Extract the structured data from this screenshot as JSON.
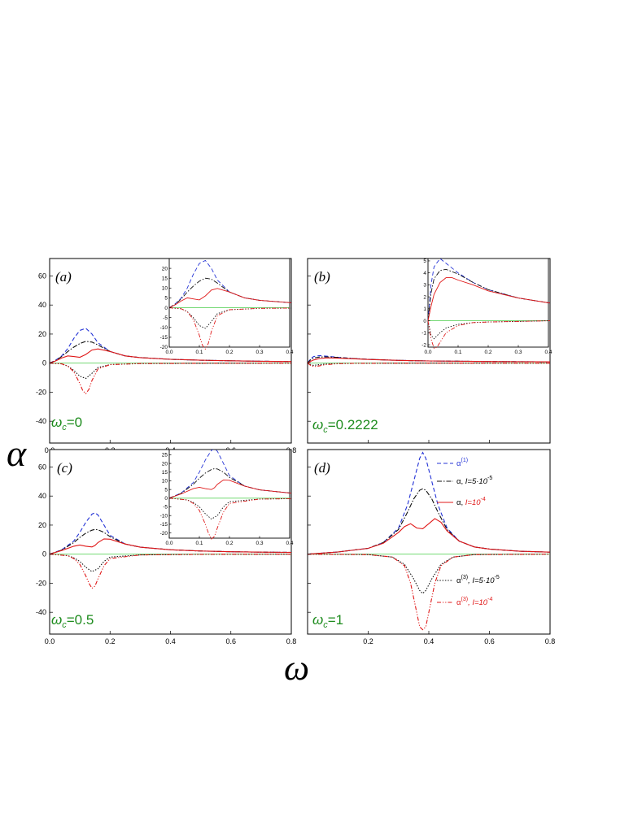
{
  "figure": {
    "y_axis_label": "α",
    "x_axis_label": "ω"
  },
  "legend": [
    {
      "id": "a1",
      "label": "α",
      "sup": "(1)",
      "tail": "",
      "color": "#2433d6",
      "style": "dash"
    },
    {
      "id": "a_low",
      "label": "α, ",
      "sup": "",
      "tail": "I=5·10",
      "tail_sup": "-5",
      "color": "#111111",
      "style": "dashdot"
    },
    {
      "id": "a_high",
      "label": "α, ",
      "sup": "",
      "tail": "I=10",
      "tail_sup": "-4",
      "color": "#e01818",
      "style": "solid"
    },
    {
      "id": "a3_low",
      "label": "α",
      "sup": "(3)",
      "tail": ", I=5·10",
      "tail_sup": "-5",
      "color": "#111111",
      "style": "dot"
    },
    {
      "id": "a3_high",
      "label": "α",
      "sup": "(3)",
      "tail": ", I=10",
      "tail_sup": "-4",
      "color": "#e01818",
      "style": "dashdotdot"
    }
  ],
  "chart_data": [
    {
      "panel": "(a)",
      "type": "line",
      "omega_c_label": "=0",
      "xlim": [
        0,
        0.8
      ],
      "ylim": [
        -55,
        72
      ],
      "xticks": [
        "0.0",
        "0.2",
        "0.4",
        "0.6",
        "0.8"
      ],
      "yticks": [
        "60",
        "40",
        "20",
        "0",
        "-20",
        "-40"
      ],
      "series": [
        {
          "name": "α(1)",
          "x": [
            0.0,
            0.02,
            0.04,
            0.06,
            0.08,
            0.1,
            0.12,
            0.14,
            0.16,
            0.2,
            0.25,
            0.3,
            0.4,
            0.5,
            0.6,
            0.7,
            0.8
          ],
          "y": [
            0,
            2,
            5,
            10,
            17,
            22.5,
            24,
            20,
            14,
            8,
            5,
            3.8,
            2.6,
            2.0,
            1.6,
            1.3,
            1.1
          ]
        },
        {
          "name": "α, I=5·10^-5",
          "x": [
            0.0,
            0.02,
            0.04,
            0.06,
            0.08,
            0.1,
            0.12,
            0.14,
            0.16,
            0.2,
            0.25,
            0.3,
            0.4,
            0.5,
            0.6,
            0.7,
            0.8
          ],
          "y": [
            0,
            1.8,
            4.5,
            8,
            11,
            13.5,
            15,
            14.5,
            12.5,
            8,
            5,
            3.8,
            2.6,
            2.0,
            1.6,
            1.3,
            1.1
          ]
        },
        {
          "name": "α, I=10^-4",
          "x": [
            0.0,
            0.02,
            0.04,
            0.06,
            0.08,
            0.1,
            0.12,
            0.14,
            0.16,
            0.2,
            0.25,
            0.3,
            0.4,
            0.5,
            0.6,
            0.7,
            0.8
          ],
          "y": [
            0,
            1.5,
            3.5,
            5,
            4.5,
            4,
            6,
            9,
            9.8,
            8,
            5,
            3.8,
            2.6,
            2.0,
            1.6,
            1.3,
            1.1
          ]
        },
        {
          "name": "α(3), I=5·10^-5",
          "x": [
            0.0,
            0.04,
            0.06,
            0.08,
            0.1,
            0.12,
            0.14,
            0.16,
            0.2,
            0.3,
            0.5,
            0.8
          ],
          "y": [
            0,
            -0.5,
            -2,
            -5,
            -9,
            -10.5,
            -7,
            -3,
            -1,
            -0.3,
            -0.1,
            0
          ]
        },
        {
          "name": "α(3), I=10^-4",
          "x": [
            0.0,
            0.04,
            0.06,
            0.08,
            0.1,
            0.11,
            0.12,
            0.13,
            0.14,
            0.16,
            0.2,
            0.3,
            0.5,
            0.8
          ],
          "y": [
            0,
            -0.5,
            -2,
            -6,
            -14,
            -19,
            -21,
            -18,
            -12,
            -4,
            -1,
            -0.3,
            -0.1,
            0
          ]
        }
      ],
      "inset": {
        "xlim": [
          0,
          0.4
        ],
        "ylim": [
          -20,
          25
        ],
        "xticks": [
          "0.0",
          "0.1",
          "0.2",
          "0.3",
          "0.4"
        ],
        "yticks": [
          "20",
          "15",
          "10",
          "5",
          "0",
          "-5",
          "-10",
          "-15",
          "-20"
        ]
      }
    },
    {
      "panel": "(b)",
      "type": "line",
      "omega_c_label": "=0.2222",
      "xlim": [
        0,
        0.8
      ],
      "ylim": [
        -55,
        72
      ],
      "xticks": [],
      "yticks": [],
      "series": [
        {
          "name": "α(1)",
          "x": [
            0.0,
            0.01,
            0.02,
            0.04,
            0.06,
            0.1,
            0.15,
            0.2,
            0.3,
            0.4,
            0.6,
            0.8
          ],
          "y": [
            0,
            3,
            4.5,
            5.2,
            4.8,
            4.0,
            3.2,
            2.6,
            1.9,
            1.5,
            1.1,
            0.9
          ]
        },
        {
          "name": "α, I=5·10^-5",
          "x": [
            0.0,
            0.01,
            0.02,
            0.04,
            0.06,
            0.1,
            0.15,
            0.2,
            0.3,
            0.4,
            0.6,
            0.8
          ],
          "y": [
            0,
            2.3,
            3.5,
            4.2,
            4.3,
            3.9,
            3.2,
            2.6,
            1.9,
            1.5,
            1.1,
            0.9
          ]
        },
        {
          "name": "α, I=10^-4",
          "x": [
            0.0,
            0.01,
            0.02,
            0.04,
            0.06,
            0.08,
            0.1,
            0.15,
            0.2,
            0.3,
            0.4,
            0.6,
            0.8
          ],
          "y": [
            0,
            1.2,
            2.2,
            3.2,
            3.6,
            3.6,
            3.4,
            3.0,
            2.5,
            1.9,
            1.5,
            1.1,
            0.9
          ]
        },
        {
          "name": "α(3), I=5·10^-5",
          "x": [
            0.0,
            0.01,
            0.02,
            0.04,
            0.06,
            0.1,
            0.15,
            0.2,
            0.4,
            0.8
          ],
          "y": [
            0,
            -1.2,
            -1.5,
            -1.0,
            -0.6,
            -0.3,
            -0.15,
            -0.1,
            0,
            0
          ]
        },
        {
          "name": "α(3), I=10^-4",
          "x": [
            0.0,
            0.01,
            0.02,
            0.03,
            0.04,
            0.06,
            0.1,
            0.15,
            0.2,
            0.4,
            0.8
          ],
          "y": [
            0,
            -1.5,
            -2.3,
            -2.2,
            -1.8,
            -1.0,
            -0.4,
            -0.15,
            -0.1,
            0,
            0
          ]
        }
      ],
      "inset": {
        "xlim": [
          0,
          0.4
        ],
        "ylim": [
          -2.2,
          5.2
        ],
        "xticks": [
          "0.0",
          "0.1",
          "0.2",
          "0.3",
          "0.4"
        ],
        "yticks": [
          "5",
          "4",
          "3",
          "2",
          "1",
          "0",
          "-1",
          "-2"
        ]
      }
    },
    {
      "panel": "(c)",
      "type": "line",
      "omega_c_label": "=0.5",
      "xlim": [
        0,
        0.8
      ],
      "ylim": [
        -55,
        72
      ],
      "xticks": [
        "0.0",
        "0.2",
        "0.4",
        "0.6",
        "0.8"
      ],
      "yticks": [
        "60",
        "40",
        "20",
        "0",
        "-20",
        "-40"
      ],
      "series": [
        {
          "name": "α(1)",
          "x": [
            0.0,
            0.04,
            0.08,
            0.1,
            0.12,
            0.14,
            0.15,
            0.16,
            0.18,
            0.2,
            0.25,
            0.3,
            0.4,
            0.5,
            0.6,
            0.7,
            0.8
          ],
          "y": [
            0,
            3,
            9,
            15,
            22,
            27.5,
            28.5,
            27,
            20,
            13,
            7,
            4.8,
            3.0,
            2.2,
            1.7,
            1.4,
            1.2
          ]
        },
        {
          "name": "α, I=5·10^-5",
          "x": [
            0.0,
            0.04,
            0.08,
            0.1,
            0.12,
            0.14,
            0.15,
            0.16,
            0.18,
            0.2,
            0.25,
            0.3,
            0.4,
            0.5,
            0.6,
            0.7,
            0.8
          ],
          "y": [
            0,
            2.8,
            8,
            11.5,
            14.5,
            16.5,
            17,
            16.8,
            15,
            12,
            7,
            4.8,
            3.0,
            2.2,
            1.7,
            1.4,
            1.2
          ]
        },
        {
          "name": "α, I=10^-4",
          "x": [
            0.0,
            0.04,
            0.08,
            0.1,
            0.12,
            0.14,
            0.15,
            0.16,
            0.18,
            0.2,
            0.25,
            0.3,
            0.4,
            0.5,
            0.6,
            0.7,
            0.8
          ],
          "y": [
            0,
            2.5,
            5.5,
            6.3,
            5.5,
            5,
            6,
            8,
            10.5,
            10.3,
            7,
            4.8,
            3.0,
            2.2,
            1.7,
            1.4,
            1.2
          ]
        },
        {
          "name": "α(3), I=5·10^-5",
          "x": [
            0.0,
            0.06,
            0.08,
            0.1,
            0.12,
            0.14,
            0.16,
            0.18,
            0.2,
            0.3,
            0.5,
            0.8
          ],
          "y": [
            0,
            -1,
            -2.5,
            -5,
            -9,
            -12,
            -10,
            -5,
            -2,
            -0.5,
            -0.1,
            0
          ]
        },
        {
          "name": "α(3), I=10^-4",
          "x": [
            0.0,
            0.06,
            0.08,
            0.1,
            0.12,
            0.13,
            0.14,
            0.15,
            0.16,
            0.18,
            0.2,
            0.3,
            0.5,
            0.8
          ],
          "y": [
            0,
            -1,
            -3,
            -7,
            -15,
            -20,
            -23.5,
            -22,
            -17,
            -8,
            -3,
            -0.5,
            -0.1,
            0
          ]
        }
      ],
      "inset": {
        "xlim": [
          0,
          0.4
        ],
        "ylim": [
          -23,
          28
        ],
        "xticks": [
          "0.0",
          "0.1",
          "0.2",
          "0.3",
          "0.4"
        ],
        "yticks": [
          "25",
          "20",
          "15",
          "10",
          "5",
          "0",
          "-5",
          "-10",
          "-15",
          "-20"
        ]
      }
    },
    {
      "panel": "(d)",
      "type": "line",
      "omega_c_label": "=1",
      "xlim": [
        0,
        0.8
      ],
      "ylim": [
        -55,
        72
      ],
      "xticks": [
        "0.2",
        "0.4",
        "0.6",
        "0.8"
      ],
      "yticks": [],
      "series": [
        {
          "name": "α(1)",
          "x": [
            0.0,
            0.1,
            0.2,
            0.25,
            0.3,
            0.33,
            0.35,
            0.37,
            0.38,
            0.39,
            0.41,
            0.43,
            0.46,
            0.5,
            0.55,
            0.6,
            0.7,
            0.8
          ],
          "y": [
            0,
            1.5,
            4,
            8,
            18,
            34,
            50,
            66,
            70,
            66,
            50,
            34,
            18,
            9,
            5,
            3.5,
            2,
            1.4
          ]
        },
        {
          "name": "α, I=5·10^-5",
          "x": [
            0.0,
            0.1,
            0.2,
            0.25,
            0.3,
            0.33,
            0.35,
            0.37,
            0.38,
            0.39,
            0.41,
            0.43,
            0.46,
            0.5,
            0.55,
            0.6,
            0.7,
            0.8
          ],
          "y": [
            0,
            1.5,
            4,
            8,
            17,
            29,
            38,
            44,
            45,
            44,
            38,
            29,
            17,
            9,
            5,
            3.5,
            2,
            1.4
          ]
        },
        {
          "name": "α, I=10^-4",
          "x": [
            0.0,
            0.1,
            0.2,
            0.25,
            0.3,
            0.32,
            0.34,
            0.36,
            0.38,
            0.4,
            0.42,
            0.44,
            0.46,
            0.5,
            0.55,
            0.6,
            0.7,
            0.8
          ],
          "y": [
            0,
            1.5,
            4,
            7.5,
            15,
            19,
            21,
            18,
            17.5,
            21,
            24.5,
            22,
            16,
            9,
            5,
            3.5,
            2,
            1.4
          ]
        },
        {
          "name": "α(3), I=5·10^-5",
          "x": [
            0.0,
            0.2,
            0.28,
            0.32,
            0.35,
            0.37,
            0.38,
            0.39,
            0.41,
            0.44,
            0.48,
            0.55,
            0.8
          ],
          "y": [
            0,
            -0.3,
            -2,
            -7,
            -17,
            -25,
            -27,
            -25,
            -17,
            -7,
            -2,
            -0.3,
            0
          ]
        },
        {
          "name": "α(3), I=10^-4",
          "x": [
            0.0,
            0.2,
            0.28,
            0.32,
            0.34,
            0.36,
            0.37,
            0.38,
            0.39,
            0.4,
            0.42,
            0.44,
            0.48,
            0.55,
            0.8
          ],
          "y": [
            0,
            -0.3,
            -2,
            -8,
            -20,
            -40,
            -50,
            -52,
            -50,
            -40,
            -20,
            -8,
            -2,
            -0.3,
            0
          ]
        }
      ],
      "inset": null
    }
  ]
}
